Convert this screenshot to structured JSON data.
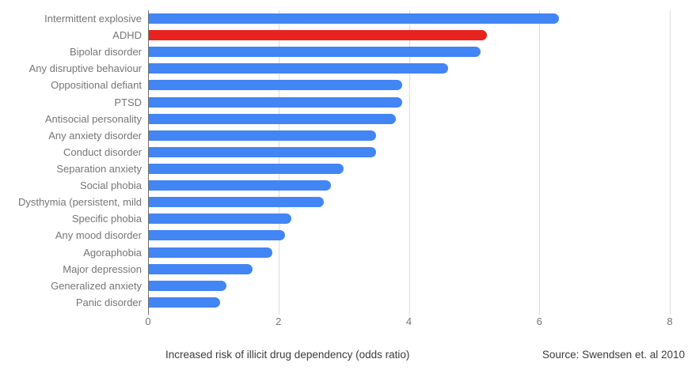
{
  "chart_data": {
    "type": "bar",
    "orientation": "horizontal",
    "title": "",
    "xlabel": "Increased risk of illicit drug dependency (odds ratio)",
    "ylabel": "",
    "source": "Source: Swendsen et. al 2010",
    "xlim": [
      0,
      8
    ],
    "x_ticks": [
      0,
      2,
      4,
      6,
      8
    ],
    "grid": "vertical-light-gray",
    "legend": "none",
    "categories": [
      "Intermittent explosive",
      "ADHD",
      "Bipolar disorder",
      "Any disruptive behaviour",
      "Oppositional defiant",
      "PTSD",
      "Antisocial personality",
      "Any anxiety disorder",
      "Conduct disorder",
      "Separation anxiety",
      "Social phobia",
      "Dysthymia (persistent, mild",
      "Specific phobia",
      "Any mood disorder",
      "Agoraphobia",
      "Major depression",
      "Generalized anxiety",
      "Panic disorder"
    ],
    "values": [
      6.3,
      5.2,
      5.1,
      4.6,
      3.9,
      3.9,
      3.8,
      3.5,
      3.5,
      3.0,
      2.8,
      2.7,
      2.2,
      2.1,
      1.9,
      1.6,
      1.2,
      1.1
    ],
    "highlight_index": 1,
    "colors": {
      "bar": "#4285f4",
      "highlight": "#e8231f",
      "gridline": "#dadada",
      "baseline": "#6f6f6f",
      "tick_label": "#757575",
      "category_label": "#757575",
      "caption_text": "#3b3b3b"
    }
  }
}
